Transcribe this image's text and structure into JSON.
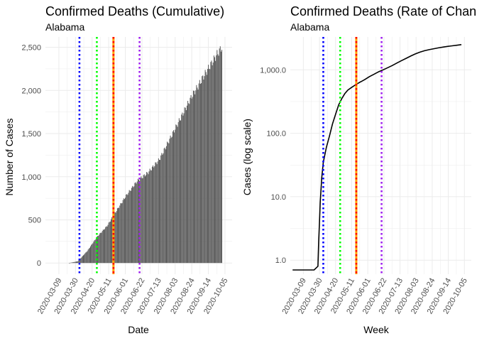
{
  "colors": {
    "bar": "#595959",
    "line": "#000000",
    "grid": "#ebebeb",
    "text": "#000000",
    "tick_text": "#4d4d4d",
    "vline_blue": "#0000ff",
    "vline_green": "#00ff00",
    "vline_red": "#ff0000",
    "vline_orange": "#ffa500",
    "vline_purple": "#a020f0"
  },
  "chart_data": [
    {
      "type": "bar",
      "title": "Confirmed Deaths (Cumulative)",
      "subtitle": "Alabama",
      "xlabel": "Date",
      "ylabel": "Number of Cases",
      "x_tick_labels": [
        "2020-03-09",
        "2020-03-30",
        "2020-04-20",
        "2020-05-11",
        "2020-06-01",
        "2020-06-22",
        "2020-07-13",
        "2020-08-03",
        "2020-08-24",
        "2020-09-14",
        "2020-10-05"
      ],
      "y_tick_labels": [
        "0",
        "500",
        "1,000",
        "1,500",
        "2,000",
        "2,500"
      ],
      "x_start": "2020-03-01",
      "xlim_days": [
        -9,
        227
      ],
      "ylim": [
        -130,
        2620
      ],
      "grid": true,
      "legend": "none",
      "series": [
        {
          "x_days": [
            21,
            32,
            44,
            56,
            69,
            79,
            93,
            107,
            121,
            135,
            149,
            163,
            177,
            184,
            190,
            196,
            202,
            208,
            214
          ],
          "values": [
            0,
            20,
            140,
            300,
            430,
            580,
            780,
            950,
            1050,
            1200,
            1450,
            1700,
            1950,
            2050,
            2150,
            2240,
            2330,
            2420,
            2500
          ]
        }
      ],
      "vlines": [
        {
          "day": 34,
          "color": "vline_blue",
          "style": "dotted"
        },
        {
          "day": 56,
          "color": "vline_green",
          "style": "dotted"
        },
        {
          "day": 77,
          "color": "vline_orange",
          "style": "solid"
        },
        {
          "day": 77,
          "color": "vline_red",
          "style": "dotted"
        },
        {
          "day": 110,
          "color": "vline_purple",
          "style": "dotted"
        }
      ]
    },
    {
      "type": "line",
      "title": "Confirmed Deaths (Rate of Change)",
      "subtitle": "Alabama",
      "xlabel": "Week",
      "ylabel": "Cases (log scale)",
      "x_tick_labels": [
        "2020-03-09",
        "2020-03-30",
        "2020-04-20",
        "2020-05-11",
        "2020-06-01",
        "2020-06-22",
        "2020-07-13",
        "2020-08-03",
        "2020-08-24",
        "2020-09-14",
        "2020-10-05"
      ],
      "y_tick_labels": [
        "1.0",
        "10.0",
        "100.0",
        "1,000.0"
      ],
      "y_ticks": [
        1,
        10,
        100,
        1000
      ],
      "y_scale": "log",
      "x_start": "2020-03-01",
      "xlim_days": [
        -9,
        227
      ],
      "ylim": [
        0.6,
        3300
      ],
      "grid": true,
      "legend": "none",
      "series": [
        {
          "x_days": [
            -6,
            10,
            22,
            27,
            28,
            29,
            30,
            32,
            34,
            38,
            42,
            46,
            50,
            54,
            58,
            62,
            66,
            70,
            74,
            78,
            82,
            88,
            94,
            100,
            106,
            112,
            118,
            124,
            130,
            136,
            142,
            148,
            154,
            160,
            166,
            172,
            178,
            184,
            190,
            196,
            202,
            208,
            214
          ],
          "values": [
            0.7,
            0.7,
            0.7,
            0.8,
            2,
            4,
            8,
            20,
            35,
            60,
            90,
            140,
            200,
            280,
            350,
            420,
            480,
            520,
            560,
            600,
            640,
            700,
            780,
            850,
            930,
            1000,
            1080,
            1170,
            1280,
            1400,
            1520,
            1650,
            1780,
            1900,
            2000,
            2080,
            2150,
            2220,
            2280,
            2340,
            2390,
            2440,
            2500
          ]
        }
      ],
      "vlines": [
        {
          "day": 34,
          "color": "vline_blue",
          "style": "dotted"
        },
        {
          "day": 56,
          "color": "vline_green",
          "style": "dotted"
        },
        {
          "day": 77,
          "color": "vline_orange",
          "style": "solid"
        },
        {
          "day": 77,
          "color": "vline_red",
          "style": "dotted"
        },
        {
          "day": 110,
          "color": "vline_purple",
          "style": "dotted"
        }
      ]
    }
  ]
}
